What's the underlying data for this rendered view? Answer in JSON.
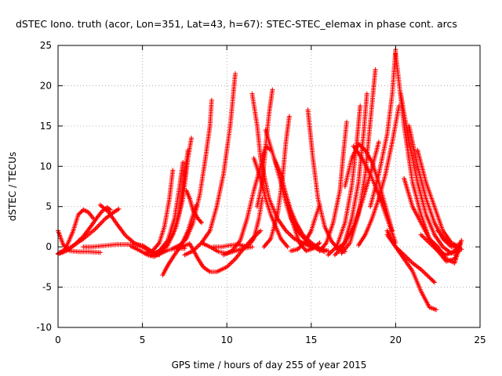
{
  "chart_data": {
    "type": "scatter",
    "title": "dSTEC Iono. truth (acor, Lon=351, Lat=43, h=67): STEC-STEC_elemax in phase cont. arcs",
    "xlabel": "GPS time / hours of day 255 of year 2015",
    "ylabel": "dSTEC  / TECUs",
    "xlim": [
      0,
      25
    ],
    "ylim": [
      -10,
      25
    ],
    "xticks": [
      0,
      5,
      10,
      15,
      20,
      25
    ],
    "yticks": [
      -10,
      -5,
      0,
      5,
      10,
      15,
      20,
      25
    ],
    "grid": true,
    "marker": "+",
    "color": "#ff0000",
    "series": [
      {
        "x": [
          0.0,
          0.3,
          0.7,
          1.2,
          1.8,
          2.5
        ],
        "y": [
          2.0,
          0.3,
          -0.5,
          -0.6,
          -0.6,
          -0.7
        ]
      },
      {
        "x": [
          0.0,
          0.3,
          0.6,
          0.9,
          1.2,
          1.5,
          1.8,
          2.1
        ],
        "y": [
          -0.8,
          -0.6,
          0.5,
          2.0,
          4.0,
          4.6,
          4.3,
          3.5
        ]
      },
      {
        "x": [
          0.0,
          0.5,
          1.0,
          1.5,
          2.0,
          2.3,
          2.6,
          2.9,
          3.1
        ],
        "y": [
          -0.9,
          -0.5,
          0.3,
          1.3,
          2.7,
          3.6,
          4.4,
          4.9,
          4.6
        ]
      },
      {
        "x": [
          0.1,
          0.8,
          1.5,
          2.2,
          2.8,
          3.3,
          3.6
        ],
        "y": [
          -0.7,
          0.0,
          1.0,
          2.2,
          3.5,
          4.3,
          4.7
        ]
      },
      {
        "x": [
          2.5,
          3.0,
          3.5,
          4.0,
          4.5,
          5.0,
          5.5,
          6.0
        ],
        "y": [
          5.2,
          4.3,
          2.8,
          1.4,
          0.5,
          0.0,
          -0.6,
          -1.0
        ]
      },
      {
        "x": [
          1.5,
          2.0,
          2.5,
          3.0,
          3.5,
          4.0,
          4.5,
          5.0,
          5.5,
          5.8
        ],
        "y": [
          0.0,
          0.0,
          0.1,
          0.2,
          0.3,
          0.3,
          0.3,
          0.2,
          -0.5,
          -1.0
        ]
      },
      {
        "x": [
          4.3,
          4.8,
          5.3,
          5.7,
          6.1,
          6.5,
          7.0,
          7.5
        ],
        "y": [
          0.1,
          -0.4,
          -1.0,
          -1.2,
          -0.8,
          -0.4,
          -0.2,
          -0.2
        ]
      },
      {
        "x": [
          5.2,
          5.6,
          6.0,
          6.3,
          6.6,
          6.8
        ],
        "y": [
          -0.8,
          -0.5,
          0.5,
          2.5,
          6.0,
          9.5
        ]
      },
      {
        "x": [
          5.5,
          6.0,
          6.5,
          6.9,
          7.2,
          7.4
        ],
        "y": [
          -1.0,
          -0.5,
          0.8,
          3.5,
          7.5,
          10.5
        ]
      },
      {
        "x": [
          5.8,
          6.3,
          6.8,
          7.2,
          7.5,
          7.7
        ],
        "y": [
          -0.8,
          -0.1,
          1.5,
          4.5,
          9.0,
          12.0
        ]
      },
      {
        "x": [
          6.0,
          6.5,
          7.0,
          7.4,
          7.7,
          7.9
        ],
        "y": [
          -0.6,
          0.2,
          2.5,
          6.0,
          11.0,
          13.5
        ]
      },
      {
        "x": [
          6.2,
          6.5,
          6.9,
          7.3,
          7.7,
          8.0,
          8.2
        ],
        "y": [
          -3.5,
          -2.3,
          -1.0,
          0.2,
          2.0,
          4.0,
          5.2
        ]
      },
      {
        "x": [
          7.6,
          7.8,
          8.0,
          8.3,
          8.5
        ],
        "y": [
          7.0,
          6.0,
          4.5,
          3.5,
          3.0
        ]
      },
      {
        "x": [
          6.8,
          7.2,
          7.6,
          8.0,
          8.4,
          8.7,
          9.0,
          9.1
        ],
        "y": [
          -0.2,
          0.2,
          1.0,
          3.0,
          6.5,
          10.5,
          15.0,
          18.2
        ]
      },
      {
        "x": [
          7.2,
          7.8,
          8.3,
          8.6,
          9.0,
          9.4,
          10.0,
          10.5,
          11.0,
          11.5,
          12.0
        ],
        "y": [
          -0.1,
          0.4,
          -1.5,
          -2.5,
          -3.1,
          -3.1,
          -2.5,
          -1.5,
          -0.2,
          1.0,
          2.0
        ]
      },
      {
        "x": [
          7.5,
          8.0,
          8.5,
          9.0,
          9.4,
          9.8,
          10.2,
          10.5
        ],
        "y": [
          -1.0,
          -0.5,
          0.5,
          2.0,
          5.0,
          9.0,
          15.0,
          21.5
        ]
      },
      {
        "x": [
          8.5,
          9.0,
          9.5,
          10.0,
          10.5,
          11.0,
          11.5
        ],
        "y": [
          0.5,
          0.0,
          -0.6,
          -0.8,
          -0.5,
          -0.2,
          0.0
        ]
      },
      {
        "x": [
          9.2,
          9.7,
          10.2,
          10.7,
          11.2,
          11.6,
          11.9,
          12.1
        ],
        "y": [
          0.0,
          0.0,
          0.2,
          0.3,
          0.0,
          1.0,
          3.5,
          6.0
        ]
      },
      {
        "x": [
          9.8,
          10.3,
          10.8,
          11.2,
          11.6,
          12.0,
          12.3,
          12.6
        ],
        "y": [
          -1.0,
          -0.5,
          0.8,
          3.5,
          7.0,
          10.0,
          12.5,
          12.0
        ]
      },
      {
        "x": [
          11.5,
          11.8,
          12.0,
          12.5,
          13.0,
          13.5,
          14.0,
          14.5,
          15.0,
          15.5
        ],
        "y": [
          19.0,
          15.0,
          11.0,
          6.0,
          3.5,
          2.0,
          1.0,
          0.5,
          0.0,
          -0.3
        ]
      },
      {
        "x": [
          11.6,
          12.0,
          12.3,
          12.6,
          12.9,
          13.2,
          13.6
        ],
        "y": [
          11.0,
          8.5,
          6.0,
          4.0,
          2.5,
          1.0,
          0.0
        ]
      },
      {
        "x": [
          11.8,
          12.1,
          12.3,
          12.5,
          12.7
        ],
        "y": [
          5.0,
          8.0,
          12.5,
          16.5,
          19.5
        ]
      },
      {
        "x": [
          12.3,
          12.8,
          13.2,
          13.5,
          13.8,
          14.2,
          14.6,
          15.0,
          15.4,
          15.8
        ],
        "y": [
          14.5,
          11.0,
          8.0,
          5.5,
          3.5,
          2.0,
          1.0,
          0.3,
          -0.3,
          -0.6
        ]
      },
      {
        "x": [
          12.8,
          13.2,
          13.5,
          13.8,
          14.1,
          14.5,
          15.0,
          15.5,
          16.0
        ],
        "y": [
          11.0,
          9.0,
          6.5,
          4.5,
          3.0,
          1.5,
          0.5,
          -0.2,
          -0.5
        ]
      },
      {
        "x": [
          12.2,
          12.6,
          13.0,
          13.3,
          13.5,
          13.7
        ],
        "y": [
          0.0,
          1.0,
          4.0,
          8.5,
          13.0,
          16.2
        ]
      },
      {
        "x": [
          13.5,
          13.9,
          14.3,
          14.7,
          15.1,
          15.5
        ],
        "y": [
          6.5,
          3.0,
          0.5,
          -0.5,
          -0.2,
          0.5
        ]
      },
      {
        "x": [
          13.8,
          14.2,
          14.6,
          15.0,
          15.3,
          15.5
        ],
        "y": [
          -0.5,
          -0.3,
          0.5,
          2.0,
          4.0,
          5.2
        ]
      },
      {
        "x": [
          14.8,
          15.1,
          15.4,
          15.8,
          16.2,
          16.6,
          17.0
        ],
        "y": [
          17.0,
          11.0,
          6.0,
          2.5,
          0.7,
          -0.3,
          -0.6
        ]
      },
      {
        "x": [
          15.5,
          15.9,
          16.3,
          16.7,
          16.9,
          17.1
        ],
        "y": [
          -0.5,
          0.5,
          3.0,
          7.0,
          11.5,
          15.5
        ]
      },
      {
        "x": [
          16.0,
          16.5,
          17.0,
          17.4,
          17.7,
          17.9
        ],
        "y": [
          -1.0,
          0.0,
          3.0,
          7.5,
          13.0,
          17.5
        ]
      },
      {
        "x": [
          16.4,
          16.9,
          17.4,
          17.8,
          18.1,
          18.3
        ],
        "y": [
          -1.0,
          0.0,
          3.5,
          8.0,
          14.0,
          19.0
        ]
      },
      {
        "x": [
          16.8,
          17.3,
          17.8,
          18.2,
          18.5,
          18.8
        ],
        "y": [
          -0.8,
          0.5,
          4.0,
          9.0,
          15.5,
          22.0
        ]
      },
      {
        "x": [
          17.0,
          17.4,
          17.8,
          18.2,
          18.6,
          19.0,
          19.4,
          19.8
        ],
        "y": [
          7.5,
          11.0,
          12.8,
          12.0,
          10.5,
          8.0,
          5.0,
          2.0
        ]
      },
      {
        "x": [
          17.5,
          18.0,
          18.5,
          19.0,
          19.5,
          20.0
        ],
        "y": [
          12.5,
          11.0,
          9.0,
          6.5,
          3.5,
          0.5
        ]
      },
      {
        "x": [
          16.5,
          17.0,
          17.5,
          18.0,
          18.5,
          19.0
        ],
        "y": [
          -0.3,
          0.5,
          2.5,
          5.5,
          9.0,
          13.0
        ]
      },
      {
        "x": [
          17.8,
          18.2,
          18.6,
          19.0,
          19.4,
          19.8,
          20.2
        ],
        "y": [
          0.2,
          1.5,
          3.5,
          6.0,
          9.0,
          13.0,
          17.5
        ]
      },
      {
        "x": [
          18.5,
          19.0,
          19.5,
          19.8,
          20.0
        ],
        "y": [
          5.0,
          9.0,
          14.0,
          19.0,
          24.5
        ]
      },
      {
        "x": [
          19.5,
          20.0,
          20.5,
          21.0,
          21.5,
          22.0,
          22.4
        ],
        "y": [
          2.0,
          0.0,
          -1.5,
          -3.0,
          -5.5,
          -7.5,
          -7.8
        ]
      },
      {
        "x": [
          19.5,
          20.0,
          20.5,
          21.0,
          21.5,
          22.0,
          22.3
        ],
        "y": [
          1.5,
          0.0,
          -1.0,
          -2.0,
          -2.8,
          -3.8,
          -4.4
        ]
      },
      {
        "x": [
          20.0,
          20.5,
          21.0,
          21.5,
          22.0,
          22.5,
          23.0,
          23.5,
          23.8
        ],
        "y": [
          24.0,
          15.0,
          8.0,
          4.0,
          1.0,
          -0.5,
          -1.8,
          -1.5,
          0.5
        ]
      },
      {
        "x": [
          20.3,
          20.8,
          21.3,
          21.8,
          22.3,
          22.8,
          23.3,
          23.8
        ],
        "y": [
          19.0,
          13.0,
          8.0,
          4.0,
          1.5,
          0.0,
          -0.8,
          -0.5
        ]
      },
      {
        "x": [
          20.8,
          21.3,
          21.8,
          22.3,
          22.8,
          23.3,
          23.8
        ],
        "y": [
          15.0,
          10.0,
          6.0,
          3.0,
          1.0,
          0.0,
          0.0
        ]
      },
      {
        "x": [
          21.3,
          21.8,
          22.3,
          22.8,
          23.3,
          23.8
        ],
        "y": [
          12.0,
          8.0,
          5.0,
          2.0,
          0.5,
          0.0
        ]
      },
      {
        "x": [
          20.5,
          21.0,
          21.5,
          22.0,
          22.5,
          23.0,
          23.5,
          23.9
        ],
        "y": [
          8.5,
          5.0,
          3.0,
          1.0,
          0.0,
          -1.5,
          -2.0,
          0.8
        ]
      },
      {
        "x": [
          21.5,
          22.0,
          22.5,
          23.0,
          23.5,
          23.8
        ],
        "y": [
          1.5,
          0.5,
          -0.5,
          -1.0,
          -0.5,
          0.3
        ]
      },
      {
        "x": [
          22.5,
          22.9,
          23.3,
          23.6,
          23.9
        ],
        "y": [
          2.0,
          1.0,
          0.3,
          0.0,
          -0.3
        ]
      }
    ]
  }
}
